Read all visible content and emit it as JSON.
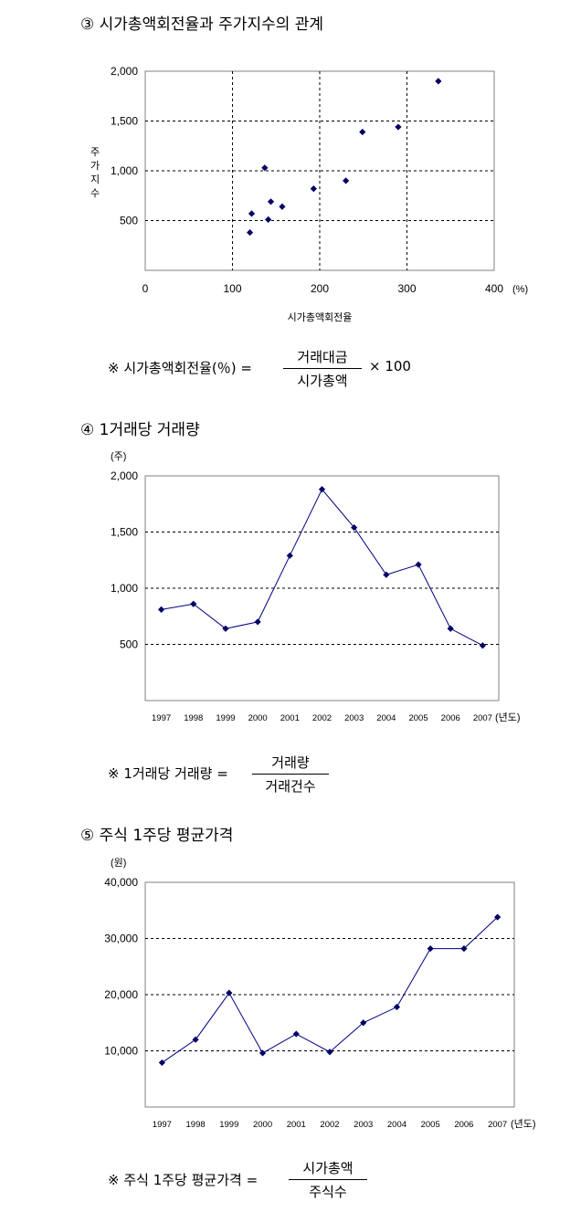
{
  "headings": {
    "h3": "③ 시가총액회전율과 주가지수의 관계",
    "h4": "④ 1거래당 거래량",
    "h5": "⑤ 주식 1주당 평균가격"
  },
  "formulas": {
    "f3": {
      "prefix": "※ 시가총액회전율(％) =",
      "numerator": "거래대금",
      "denominator": "시가총액",
      "suffix": "× 100"
    },
    "f4": {
      "prefix": "※ 1거래당 거래량 =",
      "numerator": "거래량",
      "denominator": "거래건수"
    },
    "f5": {
      "prefix": "※ 주식 1주당 평균가격 =",
      "numerator": "시가총액",
      "denominator": "주식수"
    }
  },
  "chart_data": [
    {
      "type": "scatter",
      "title": "",
      "xlabel": "시가총액회전율",
      "ylabel": "주가지수",
      "x_unit": "(%)",
      "xlim": [
        0,
        400
      ],
      "ylim": [
        0,
        2000
      ],
      "x_ticks": [
        "0",
        "100",
        "200",
        "300",
        "400"
      ],
      "y_ticks": [
        "500",
        "1,000",
        "1,500",
        "2,000"
      ],
      "grid": true,
      "points": [
        {
          "x": 120,
          "y": 380
        },
        {
          "x": 122,
          "y": 570
        },
        {
          "x": 137,
          "y": 1030
        },
        {
          "x": 141,
          "y": 510
        },
        {
          "x": 144,
          "y": 690
        },
        {
          "x": 157,
          "y": 640
        },
        {
          "x": 193,
          "y": 820
        },
        {
          "x": 230,
          "y": 900
        },
        {
          "x": 249,
          "y": 1390
        },
        {
          "x": 290,
          "y": 1440
        },
        {
          "x": 336,
          "y": 1900
        }
      ]
    },
    {
      "type": "line",
      "title": "",
      "y_unit": "(주)",
      "x_unit": "(년도)",
      "ylim": [
        0,
        2000
      ],
      "y_ticks": [
        "500",
        "1,000",
        "1,500",
        "2,000"
      ],
      "grid": true,
      "categories": [
        "1997",
        "1998",
        "1999",
        "2000",
        "2001",
        "2002",
        "2003",
        "2004",
        "2005",
        "2006",
        "2007"
      ],
      "values": [
        810,
        860,
        640,
        700,
        1290,
        1880,
        1540,
        1120,
        1210,
        640,
        490
      ]
    },
    {
      "type": "line",
      "title": "",
      "y_unit": "(원)",
      "x_unit": "(년도)",
      "ylim": [
        0,
        40000
      ],
      "y_ticks": [
        "10,000",
        "20,000",
        "30,000",
        "40,000"
      ],
      "grid": true,
      "categories": [
        "1997",
        "1998",
        "1999",
        "2000",
        "2001",
        "2002",
        "2003",
        "2004",
        "2005",
        "2006",
        "2007"
      ],
      "values": [
        7900,
        12000,
        20300,
        9600,
        13000,
        9800,
        15000,
        17800,
        28200,
        28200,
        33800
      ]
    }
  ],
  "colors": {
    "marker": "#000066",
    "line": "#00007f",
    "grid": "#000000",
    "frame": "#808080"
  }
}
